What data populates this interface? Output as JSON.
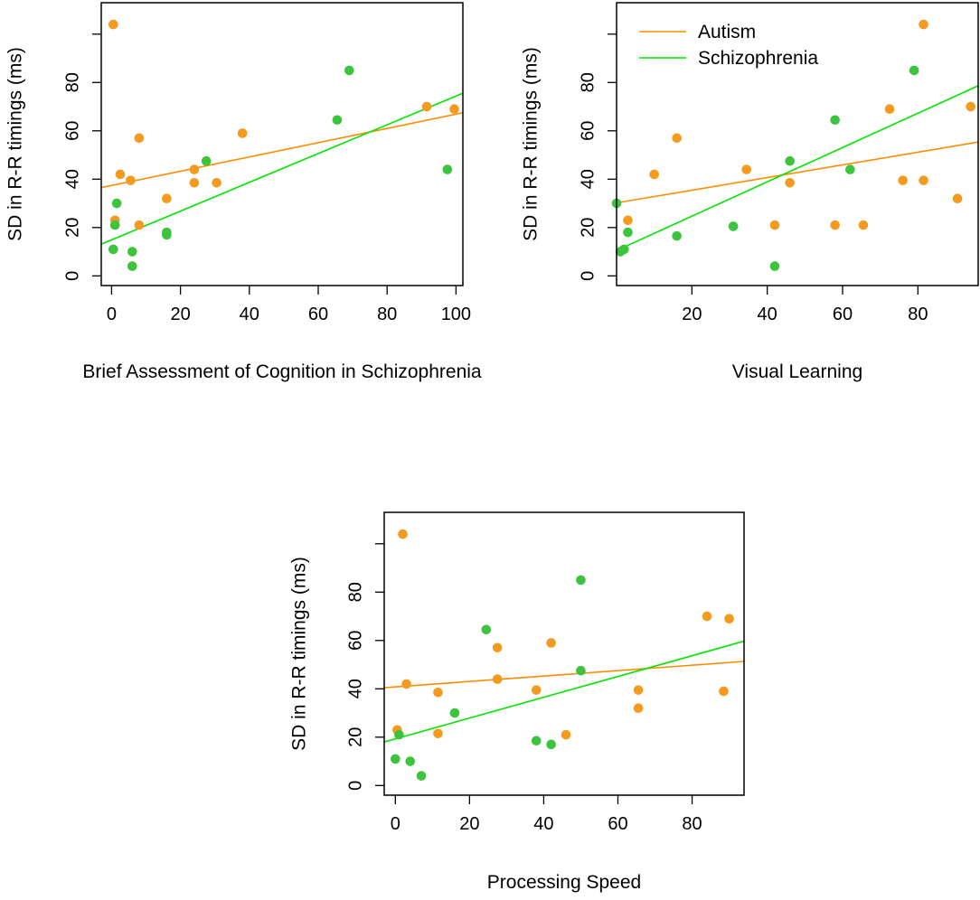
{
  "colors": {
    "autism": "#ff8c00",
    "schizophrenia": "#00e600",
    "autism_point": "#f39a1f",
    "schizophrenia_point": "#3cc43c"
  },
  "legend": {
    "position": "top-left",
    "autism_label": "Autism",
    "schizophrenia_label": "Schizophrenia"
  },
  "chart_data": [
    {
      "type": "scatter",
      "xlabel": "Brief Assessment of Cognition in Schizophrenia",
      "ylabel": "SD in R-R timings (ms)",
      "xlim": [
        -3,
        102
      ],
      "ylim": [
        -4,
        113
      ],
      "xticks": [
        0,
        20,
        40,
        60,
        80,
        100
      ],
      "yticks": [
        0,
        20,
        40,
        60,
        80
      ],
      "series": [
        {
          "name": "Autism",
          "x": [
            0.5,
            1,
            2.5,
            5.5,
            8,
            8,
            16,
            24,
            24,
            30.5,
            38,
            91.5,
            99.5
          ],
          "y": [
            104,
            23,
            42,
            39.5,
            57,
            21,
            32,
            38.5,
            44,
            38.5,
            59,
            70,
            69
          ],
          "fit": {
            "intercept": 37.4,
            "slope": 0.295
          }
        },
        {
          "name": "Schizophrenia",
          "x": [
            0.5,
            1,
            1.5,
            6,
            6,
            16,
            16,
            27.5,
            65.5,
            69,
            97.5
          ],
          "y": [
            11,
            21,
            30,
            10,
            4,
            18,
            17,
            47.5,
            64.5,
            85,
            44
          ],
          "fit": {
            "intercept": 14.9,
            "slope": 0.595
          }
        }
      ]
    },
    {
      "type": "scatter",
      "xlabel": "Visual Learning",
      "ylabel": "SD in R-R timings (ms)",
      "xlim": [
        0,
        96
      ],
      "ylim": [
        -4,
        113
      ],
      "xticks": [
        20,
        40,
        60,
        80
      ],
      "yticks": [
        0,
        20,
        40,
        60,
        80
      ],
      "series": [
        {
          "name": "Autism",
          "x": [
            3,
            10,
            16,
            34.5,
            42,
            46,
            58,
            65.5,
            72.5,
            76,
            81.5,
            81.5,
            90.5,
            94
          ],
          "y": [
            23,
            42,
            57,
            44,
            21,
            38.5,
            21,
            21,
            69,
            39.5,
            104,
            39.5,
            32,
            70
          ],
          "fit": {
            "intercept": 30.2,
            "slope": 0.262
          }
        },
        {
          "name": "Schizophrenia",
          "x": [
            0,
            1,
            2,
            3,
            16,
            31,
            42,
            46,
            58,
            62,
            79
          ],
          "y": [
            30,
            10,
            11,
            18,
            16.5,
            20.5,
            4,
            47.5,
            64.5,
            44,
            85
          ],
          "fit": {
            "intercept": 10.5,
            "slope": 0.71
          }
        }
      ]
    },
    {
      "type": "scatter",
      "xlabel": "Processing Speed",
      "ylabel": "SD in R-R timings (ms)",
      "xlim": [
        -3,
        94
      ],
      "ylim": [
        -4,
        113
      ],
      "xticks": [
        0,
        20,
        40,
        60,
        80
      ],
      "yticks": [
        0,
        20,
        40,
        60,
        80
      ],
      "series": [
        {
          "name": "Autism",
          "x": [
            2,
            0.5,
            3,
            11.5,
            11.5,
            27.5,
            27.5,
            38,
            42,
            46,
            65.5,
            65.5,
            84,
            88.5,
            90
          ],
          "y": [
            104,
            23,
            42,
            38.5,
            21.5,
            57,
            44,
            39.5,
            59,
            21,
            39.5,
            32,
            70,
            39,
            69
          ],
          "fit": {
            "intercept": 40.8,
            "slope": 0.112
          }
        },
        {
          "name": "Schizophrenia",
          "x": [
            0,
            1,
            4,
            7,
            16,
            24.5,
            38,
            42,
            50,
            50
          ],
          "y": [
            11,
            21,
            10,
            4,
            30,
            64.5,
            18.5,
            17,
            85,
            47.5
          ],
          "fit": {
            "intercept": 19.3,
            "slope": 0.43
          }
        }
      ]
    }
  ]
}
